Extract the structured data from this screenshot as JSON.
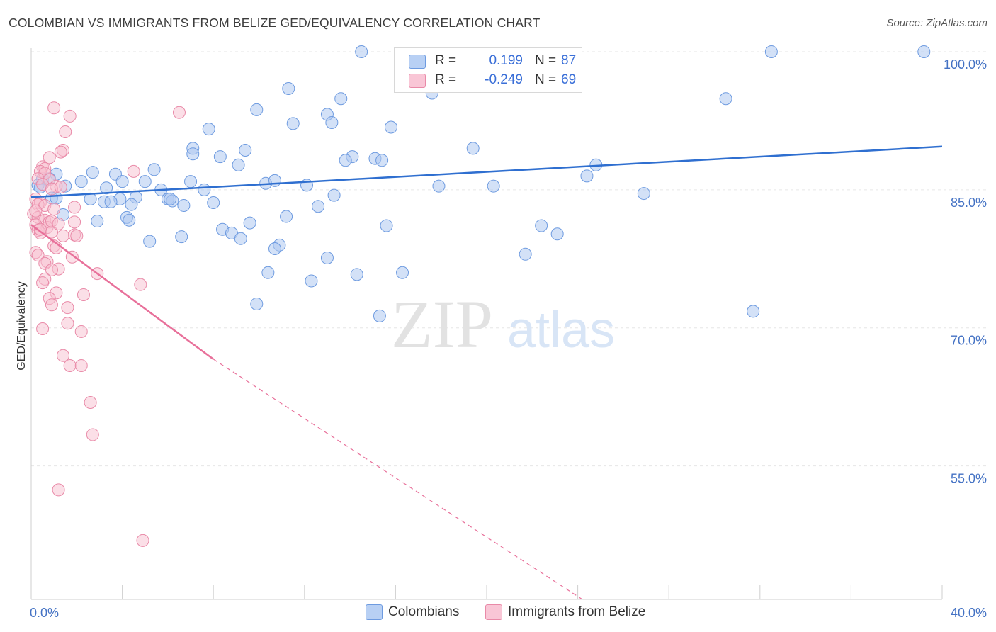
{
  "title": "COLOMBIAN VS IMMIGRANTS FROM BELIZE GED/EQUIVALENCY CORRELATION CHART",
  "source": "Source: ZipAtlas.com",
  "watermark": {
    "zip": "ZIP",
    "atlas": "atlas"
  },
  "legend": {
    "colombians": {
      "r_label": "R =",
      "r_value": "0.199",
      "n_label": "N =",
      "n_value": "87"
    },
    "belize": {
      "r_label": "R =",
      "r_value": "-0.249",
      "n_label": "N =",
      "n_value": "69"
    }
  },
  "bottom_legend": {
    "colombians": "Colombians",
    "belize": "Immigrants from Belize"
  },
  "colors": {
    "blue_fill": "#aec8f0",
    "blue_stroke": "#6e9be0",
    "blue_line": "#2f6fd0",
    "pink_fill": "#f7bfd0",
    "pink_stroke": "#e98aa8",
    "pink_line": "#e8709a",
    "grid": "#e6e6e6",
    "tick_text": "#4472c4"
  },
  "chart_data": {
    "type": "scatter",
    "title": "COLOMBIAN VS IMMIGRANTS FROM BELIZE GED/EQUIVALENCY CORRELATION CHART",
    "xlabel": "",
    "ylabel": "GED/Equivalency",
    "xlim": [
      0,
      40
    ],
    "ylim": [
      40.5,
      101
    ],
    "x_tick_labels": [
      {
        "value": 0,
        "label": "0.0%"
      },
      {
        "value": 40,
        "label": "40.0%"
      }
    ],
    "y_tick_labels": [
      {
        "value": 100,
        "label": "100.0%"
      },
      {
        "value": 85,
        "label": "85.0%"
      },
      {
        "value": 70,
        "label": "70.0%"
      },
      {
        "value": 55,
        "label": "55.0%"
      }
    ],
    "grid": true,
    "series": [
      {
        "name": "Colombians",
        "trend": {
          "x0": 0,
          "y0": 84.2,
          "x1": 40,
          "y1": 89.7
        },
        "points": [
          [
            14.5,
            100.0
          ],
          [
            32.5,
            100.0
          ],
          [
            39.2,
            100.0
          ],
          [
            11.3,
            96.0
          ],
          [
            17.6,
            95.5
          ],
          [
            13.6,
            94.9
          ],
          [
            30.5,
            94.9
          ],
          [
            9.9,
            93.7
          ],
          [
            13.0,
            93.2
          ],
          [
            13.2,
            92.3
          ],
          [
            11.5,
            92.2
          ],
          [
            7.8,
            91.6
          ],
          [
            15.8,
            91.8
          ],
          [
            7.1,
            89.5
          ],
          [
            9.4,
            89.3
          ],
          [
            19.4,
            89.5
          ],
          [
            7.1,
            88.9
          ],
          [
            8.3,
            88.6
          ],
          [
            14.1,
            88.6
          ],
          [
            13.8,
            88.2
          ],
          [
            15.1,
            88.4
          ],
          [
            15.4,
            88.2
          ],
          [
            9.1,
            87.7
          ],
          [
            24.8,
            87.7
          ],
          [
            5.4,
            87.2
          ],
          [
            2.7,
            86.9
          ],
          [
            3.7,
            86.7
          ],
          [
            1.1,
            86.7
          ],
          [
            0.5,
            86.2
          ],
          [
            0.8,
            86.2
          ],
          [
            2.2,
            85.9
          ],
          [
            4.0,
            85.9
          ],
          [
            5.0,
            85.9
          ],
          [
            7.0,
            85.9
          ],
          [
            10.3,
            85.7
          ],
          [
            10.7,
            86.0
          ],
          [
            12.1,
            85.5
          ],
          [
            17.9,
            85.4
          ],
          [
            1.5,
            85.4
          ],
          [
            0.3,
            85.5
          ],
          [
            3.3,
            85.2
          ],
          [
            5.7,
            85.0
          ],
          [
            7.6,
            85.0
          ],
          [
            24.4,
            86.5
          ],
          [
            26.9,
            84.6
          ],
          [
            0.9,
            84.1
          ],
          [
            1.1,
            84.1
          ],
          [
            2.6,
            84.0
          ],
          [
            3.9,
            84.0
          ],
          [
            4.6,
            84.2
          ],
          [
            6.0,
            84.0
          ],
          [
            6.2,
            83.8
          ],
          [
            3.2,
            83.7
          ],
          [
            3.5,
            83.7
          ],
          [
            6.7,
            83.3
          ],
          [
            8.0,
            83.6
          ],
          [
            4.4,
            83.4
          ],
          [
            12.6,
            83.2
          ],
          [
            1.4,
            82.3
          ],
          [
            4.2,
            82.0
          ],
          [
            4.3,
            81.7
          ],
          [
            2.9,
            81.6
          ],
          [
            11.2,
            82.1
          ],
          [
            9.6,
            81.4
          ],
          [
            15.6,
            81.1
          ],
          [
            22.4,
            81.1
          ],
          [
            8.4,
            80.7
          ],
          [
            8.8,
            80.3
          ],
          [
            9.2,
            79.7
          ],
          [
            6.6,
            79.9
          ],
          [
            5.2,
            79.4
          ],
          [
            10.9,
            79.0
          ],
          [
            10.7,
            78.6
          ],
          [
            21.7,
            78.0
          ],
          [
            13.0,
            77.6
          ],
          [
            10.4,
            76.0
          ],
          [
            14.3,
            75.8
          ],
          [
            16.3,
            76.0
          ],
          [
            12.3,
            75.1
          ],
          [
            9.9,
            72.6
          ],
          [
            15.3,
            71.3
          ],
          [
            31.7,
            71.8
          ],
          [
            20.3,
            85.4
          ],
          [
            23.1,
            80.2
          ],
          [
            0.4,
            85.3
          ],
          [
            6.1,
            84.0
          ],
          [
            13.3,
            84.4
          ]
        ]
      },
      {
        "name": "Immigrants from Belize",
        "trend": {
          "x0": 0,
          "y0": 81.2,
          "x1": 8.0,
          "y1": 66.6
        },
        "trend_dashed": {
          "x0": 8.0,
          "y0": 66.6,
          "x1": 24.2,
          "y1": 40.5
        },
        "points": [
          [
            1.0,
            93.9
          ],
          [
            1.7,
            93.0
          ],
          [
            6.5,
            93.4
          ],
          [
            1.5,
            91.3
          ],
          [
            1.4,
            89.3
          ],
          [
            1.3,
            89.1
          ],
          [
            0.8,
            88.5
          ],
          [
            0.5,
            87.5
          ],
          [
            0.6,
            87.3
          ],
          [
            0.4,
            87.0
          ],
          [
            0.6,
            86.8
          ],
          [
            4.5,
            87.0
          ],
          [
            0.3,
            86.2
          ],
          [
            0.8,
            86.1
          ],
          [
            0.5,
            85.6
          ],
          [
            1.1,
            85.4
          ],
          [
            0.9,
            85.1
          ],
          [
            1.3,
            85.3
          ],
          [
            0.2,
            84.0
          ],
          [
            0.4,
            83.6
          ],
          [
            0.3,
            83.4
          ],
          [
            0.6,
            83.3
          ],
          [
            1.9,
            83.1
          ],
          [
            0.1,
            82.4
          ],
          [
            0.3,
            82.0
          ],
          [
            0.6,
            81.7
          ],
          [
            0.8,
            81.5
          ],
          [
            1.9,
            81.5
          ],
          [
            0.2,
            81.2
          ],
          [
            0.7,
            80.9
          ],
          [
            0.3,
            80.6
          ],
          [
            0.4,
            80.3
          ],
          [
            0.9,
            80.4
          ],
          [
            1.4,
            80.0
          ],
          [
            1.0,
            78.9
          ],
          [
            1.1,
            78.7
          ],
          [
            0.2,
            78.2
          ],
          [
            0.3,
            77.9
          ],
          [
            1.8,
            77.7
          ],
          [
            0.7,
            77.2
          ],
          [
            0.6,
            77.0
          ],
          [
            1.2,
            76.4
          ],
          [
            0.9,
            76.3
          ],
          [
            2.9,
            75.9
          ],
          [
            0.6,
            75.3
          ],
          [
            0.5,
            74.9
          ],
          [
            4.8,
            74.7
          ],
          [
            1.1,
            73.8
          ],
          [
            2.3,
            73.6
          ],
          [
            0.8,
            73.2
          ],
          [
            0.9,
            72.5
          ],
          [
            1.6,
            72.2
          ],
          [
            0.5,
            69.9
          ],
          [
            2.2,
            69.6
          ],
          [
            1.6,
            70.5
          ],
          [
            1.4,
            67.0
          ],
          [
            1.7,
            65.9
          ],
          [
            2.2,
            65.9
          ],
          [
            2.6,
            61.9
          ],
          [
            2.7,
            58.4
          ],
          [
            1.2,
            52.4
          ],
          [
            4.9,
            46.9
          ],
          [
            1.9,
            80.1
          ],
          [
            0.4,
            80.7
          ],
          [
            0.2,
            82.7
          ],
          [
            1.0,
            82.9
          ],
          [
            0.9,
            81.6
          ],
          [
            1.2,
            81.3
          ],
          [
            2.0,
            80.0
          ]
        ]
      }
    ]
  }
}
